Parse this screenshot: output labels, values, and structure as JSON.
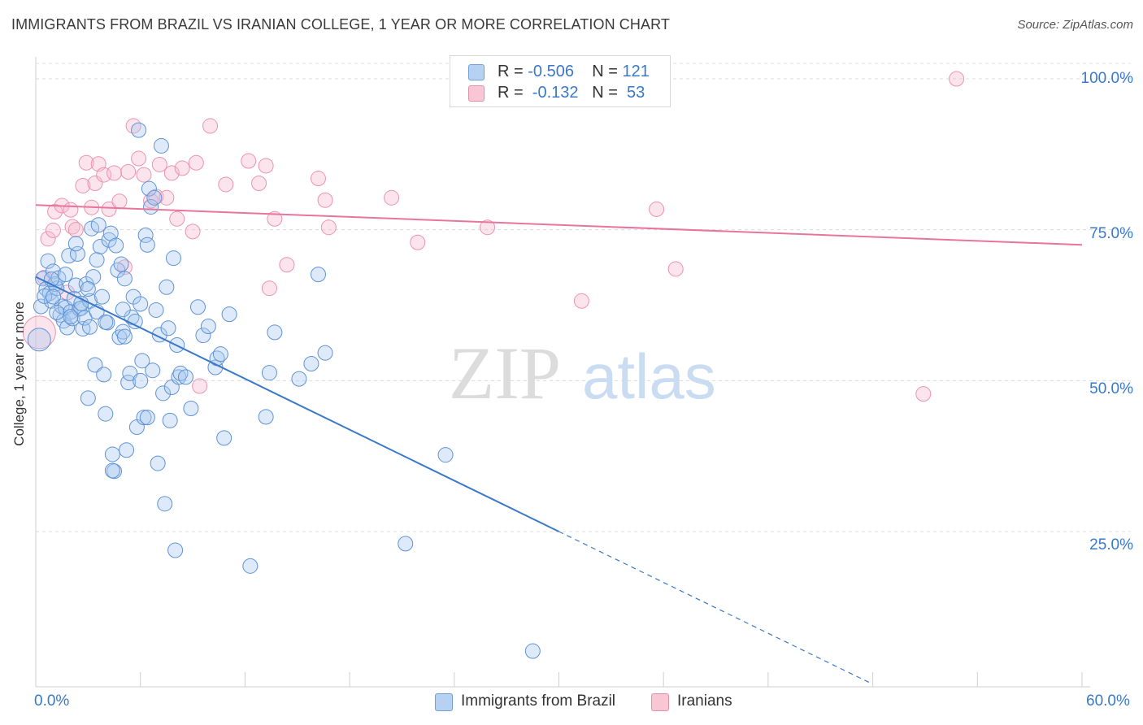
{
  "title": "IMMIGRANTS FROM BRAZIL VS IRANIAN COLLEGE, 1 YEAR OR MORE CORRELATION CHART",
  "source": "Source: ZipAtlas.com",
  "watermark": {
    "zip": "ZIP",
    "atlas": "atlas"
  },
  "colors": {
    "blue": "#3a78c9",
    "blue_fill": "#a9c8f0",
    "pink": "#e8759a",
    "pink_fill": "#f6b8cc",
    "tick_text": "#3a78c9",
    "grid": "#dcdcdc"
  },
  "legend_top": {
    "rows": [
      {
        "r_label": "R = ",
        "r_value": "-0.506",
        "n_label": "N = ",
        "n_value": "121"
      },
      {
        "r_label": "R = ",
        "r_value": " -0.132",
        "n_label": "N = ",
        "n_value": " 53"
      }
    ]
  },
  "legend_bottom": {
    "items": [
      "Immigrants from Brazil",
      "Iranians"
    ]
  },
  "chart_data": {
    "type": "scatter",
    "title": "IMMIGRANTS FROM BRAZIL VS IRANIAN COLLEGE, 1 YEAR OR MORE CORRELATION CHART",
    "xlabel": "",
    "ylabel": "College, 1 year or more",
    "xlim": [
      0,
      60
    ],
    "ylim": [
      0,
      105
    ],
    "x_tick_labels": [
      "0.0%",
      "60.0%"
    ],
    "y_tick_labels": [
      "100.0%",
      "75.0%",
      "50.0%",
      "25.0%"
    ],
    "y_ticks": [
      100,
      75,
      50,
      25
    ],
    "grid": "horizontal dashed",
    "legend": "bottom-center",
    "series": [
      {
        "name": "Immigrants from Brazil",
        "stats": {
          "R": -0.506,
          "N": 121
        },
        "trend": {
          "x0": 0,
          "y0": 67.2,
          "x1": 30.0,
          "y1": 25.0,
          "dashed_to_x": 47.8,
          "dashed_to_y": 0
        },
        "points": [
          [
            0.2,
            56.8
          ],
          [
            0.3,
            62.3
          ],
          [
            0.4,
            66.9
          ],
          [
            0.6,
            65.2
          ],
          [
            0.7,
            69.8
          ],
          [
            0.8,
            64.5
          ],
          [
            0.9,
            63.2
          ],
          [
            1.0,
            68.1
          ],
          [
            1.1,
            66.0
          ],
          [
            1.2,
            65.3
          ],
          [
            1.3,
            67.0
          ],
          [
            1.4,
            60.9
          ],
          [
            1.5,
            62.3
          ],
          [
            1.6,
            59.9
          ],
          [
            1.7,
            62.1
          ],
          [
            1.8,
            58.8
          ],
          [
            1.9,
            70.7
          ],
          [
            2.0,
            61.4
          ],
          [
            2.1,
            60.3
          ],
          [
            2.2,
            63.6
          ],
          [
            2.3,
            65.8
          ],
          [
            2.4,
            71.0
          ],
          [
            2.5,
            61.9
          ],
          [
            2.6,
            62.0
          ],
          [
            2.7,
            58.6
          ],
          [
            2.8,
            60.4
          ],
          [
            2.9,
            66.0
          ],
          [
            3.0,
            47.1
          ],
          [
            3.1,
            63.2
          ],
          [
            3.2,
            75.2
          ],
          [
            3.3,
            67.2
          ],
          [
            3.4,
            52.6
          ],
          [
            3.5,
            61.4
          ],
          [
            3.6,
            75.8
          ],
          [
            3.7,
            72.2
          ],
          [
            3.8,
            63.9
          ],
          [
            3.9,
            51.0
          ],
          [
            4.0,
            44.5
          ],
          [
            4.1,
            59.6
          ],
          [
            4.2,
            73.3
          ],
          [
            4.3,
            74.4
          ],
          [
            4.4,
            37.8
          ],
          [
            4.5,
            35.0
          ],
          [
            4.6,
            72.4
          ],
          [
            4.7,
            68.3
          ],
          [
            4.8,
            57.2
          ],
          [
            4.9,
            69.3
          ],
          [
            5.0,
            58.1
          ],
          [
            5.1,
            66.9
          ],
          [
            5.2,
            38.5
          ],
          [
            5.3,
            49.7
          ],
          [
            5.4,
            51.2
          ],
          [
            5.5,
            60.5
          ],
          [
            5.6,
            63.9
          ],
          [
            5.7,
            59.8
          ],
          [
            5.8,
            42.3
          ],
          [
            5.9,
            91.5
          ],
          [
            6.0,
            62.7
          ],
          [
            6.1,
            53.3
          ],
          [
            6.2,
            43.9
          ],
          [
            6.3,
            74.1
          ],
          [
            6.4,
            72.5
          ],
          [
            6.5,
            81.8
          ],
          [
            6.6,
            78.8
          ],
          [
            6.7,
            51.7
          ],
          [
            6.8,
            80.3
          ],
          [
            6.9,
            61.7
          ],
          [
            7.0,
            36.3
          ],
          [
            7.1,
            57.6
          ],
          [
            7.2,
            88.9
          ],
          [
            7.3,
            47.9
          ],
          [
            7.4,
            29.6
          ],
          [
            7.5,
            65.5
          ],
          [
            7.6,
            58.7
          ],
          [
            7.7,
            43.4
          ],
          [
            7.8,
            48.9
          ],
          [
            7.9,
            70.3
          ],
          [
            8.0,
            21.9
          ],
          [
            8.1,
            55.9
          ],
          [
            8.2,
            50.6
          ],
          [
            8.3,
            51.2
          ],
          [
            8.6,
            50.6
          ],
          [
            8.9,
            45.4
          ],
          [
            9.3,
            62.2
          ],
          [
            9.6,
            57.5
          ],
          [
            9.9,
            59.0
          ],
          [
            10.3,
            52.2
          ],
          [
            10.4,
            53.7
          ],
          [
            10.6,
            54.4
          ],
          [
            10.8,
            40.5
          ],
          [
            11.1,
            61.0
          ],
          [
            12.3,
            19.3
          ],
          [
            13.2,
            44.0
          ],
          [
            13.4,
            51.3
          ],
          [
            13.7,
            58.0
          ],
          [
            15.1,
            50.3
          ],
          [
            15.8,
            52.8
          ],
          [
            16.2,
            67.6
          ],
          [
            16.6,
            54.6
          ],
          [
            21.2,
            23.0
          ],
          [
            23.5,
            37.7
          ],
          [
            28.5,
            5.2
          ],
          [
            0.5,
            64.0
          ],
          [
            1.0,
            63.9
          ],
          [
            2.0,
            60.6
          ],
          [
            3.0,
            65.2
          ],
          [
            4.0,
            59.7
          ],
          [
            5.0,
            61.8
          ],
          [
            6.0,
            50.0
          ],
          [
            4.4,
            35.1
          ],
          [
            1.2,
            61.3
          ],
          [
            2.3,
            72.7
          ],
          [
            3.5,
            70.0
          ],
          [
            6.4,
            43.9
          ],
          [
            1.7,
            67.6
          ],
          [
            0.9,
            66.8
          ],
          [
            3.1,
            58.9
          ],
          [
            2.6,
            62.8
          ],
          [
            5.1,
            57.3
          ]
        ]
      },
      {
        "name": "Iranians",
        "stats": {
          "R": -0.132,
          "N": 53
        },
        "trend": {
          "x0": 0,
          "y0": 79.1,
          "x1": 60,
          "y1": 72.5
        },
        "points": [
          [
            0.2,
            58.0
          ],
          [
            0.5,
            67.1
          ],
          [
            0.7,
            73.5
          ],
          [
            1.0,
            74.9
          ],
          [
            1.1,
            78.0
          ],
          [
            1.5,
            79.0
          ],
          [
            1.8,
            64.6
          ],
          [
            2.0,
            78.3
          ],
          [
            2.1,
            75.5
          ],
          [
            2.3,
            75.0
          ],
          [
            2.7,
            82.3
          ],
          [
            2.9,
            86.1
          ],
          [
            3.2,
            78.7
          ],
          [
            3.4,
            82.7
          ],
          [
            3.6,
            85.9
          ],
          [
            3.9,
            84.1
          ],
          [
            4.2,
            78.4
          ],
          [
            4.5,
            84.4
          ],
          [
            4.8,
            79.7
          ],
          [
            5.1,
            68.8
          ],
          [
            5.3,
            84.6
          ],
          [
            5.6,
            92.2
          ],
          [
            5.9,
            86.8
          ],
          [
            6.2,
            84.1
          ],
          [
            6.6,
            79.8
          ],
          [
            6.9,
            80.5
          ],
          [
            7.1,
            85.8
          ],
          [
            7.5,
            80.3
          ],
          [
            7.8,
            84.4
          ],
          [
            8.1,
            76.8
          ],
          [
            8.4,
            85.2
          ],
          [
            9.0,
            74.7
          ],
          [
            9.2,
            86.1
          ],
          [
            9.4,
            49.1
          ],
          [
            10.0,
            92.2
          ],
          [
            10.9,
            82.5
          ],
          [
            12.2,
            86.4
          ],
          [
            12.8,
            82.7
          ],
          [
            13.2,
            85.6
          ],
          [
            13.4,
            65.3
          ],
          [
            13.7,
            76.8
          ],
          [
            14.4,
            69.2
          ],
          [
            16.2,
            83.5
          ],
          [
            16.6,
            79.9
          ],
          [
            16.8,
            75.4
          ],
          [
            20.4,
            80.3
          ],
          [
            21.9,
            72.9
          ],
          [
            25.9,
            75.4
          ],
          [
            31.3,
            63.2
          ],
          [
            35.6,
            78.4
          ],
          [
            36.7,
            68.5
          ],
          [
            50.9,
            47.8
          ],
          [
            52.8,
            100.0
          ]
        ]
      }
    ]
  }
}
